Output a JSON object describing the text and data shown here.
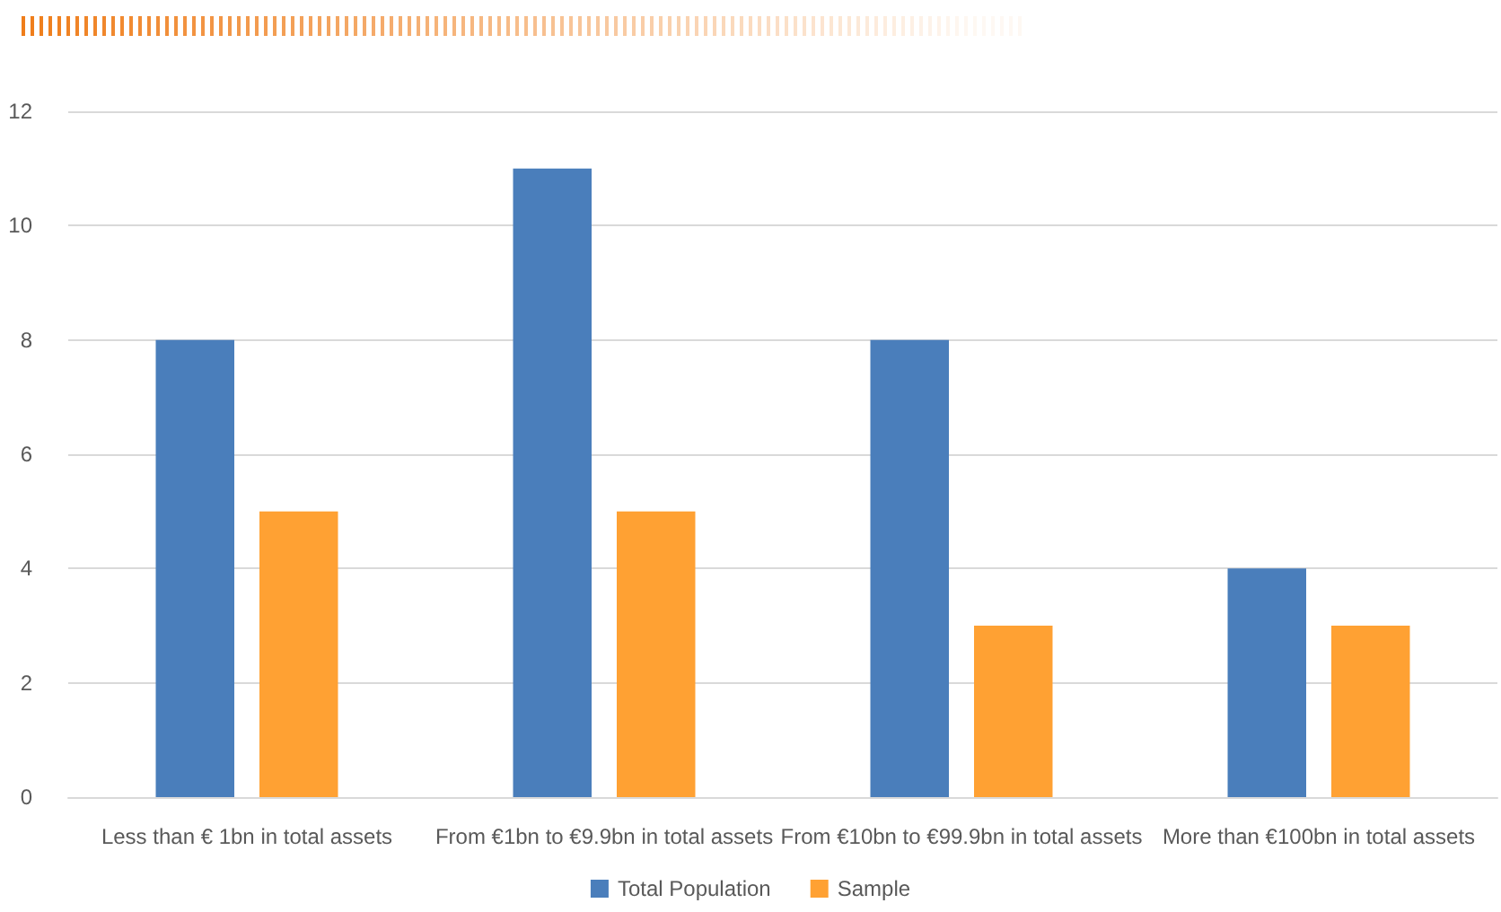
{
  "chart_data": {
    "type": "bar",
    "categories": [
      "Less than € 1bn in total assets",
      "From €1bn to €9.9bn in total assets",
      "From €10bn to €99.9bn in total assets",
      "More than €100bn in total assets"
    ],
    "series": [
      {
        "name": "Total Population",
        "color": "#4a7ebb",
        "values": [
          8,
          11,
          8,
          4
        ]
      },
      {
        "name": "Sample",
        "color": "#ffa133",
        "values": [
          5,
          5,
          3,
          3
        ]
      }
    ],
    "ylim": [
      0,
      12
    ],
    "yticks": [
      0,
      2,
      4,
      6,
      8,
      10,
      12
    ],
    "grid": "y",
    "legend": "bottom"
  }
}
